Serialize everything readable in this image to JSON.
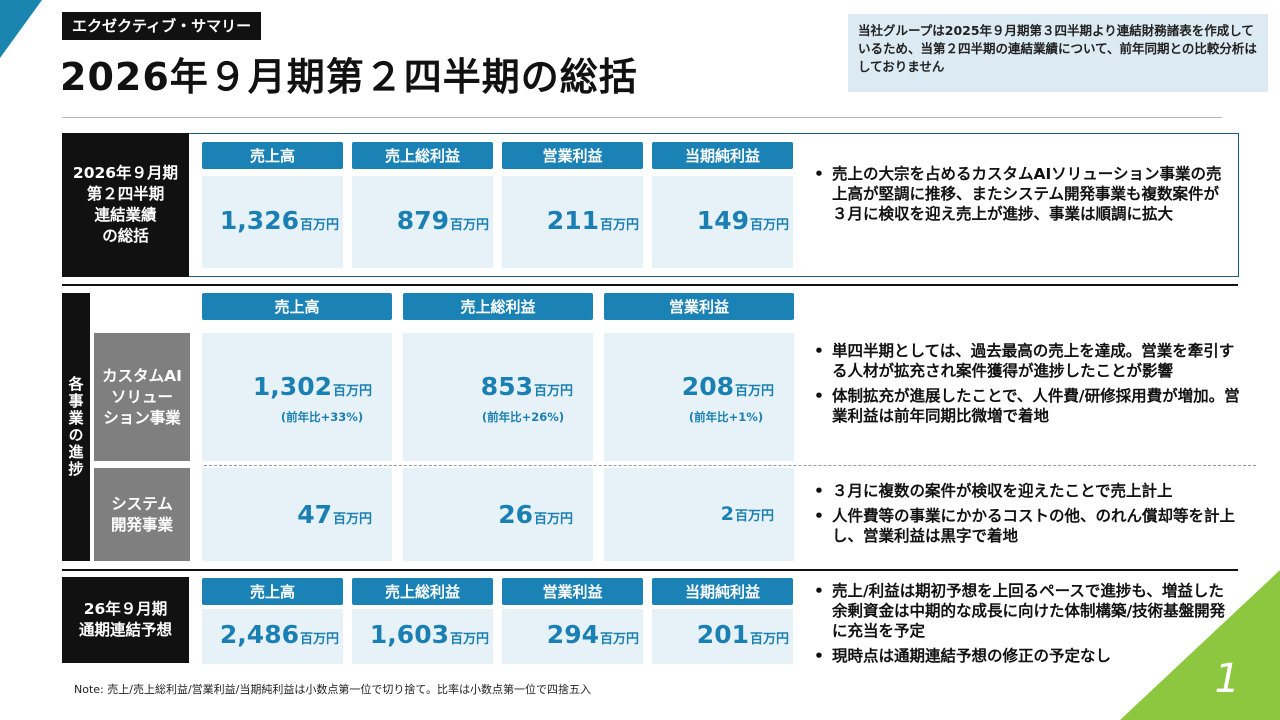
{
  "header": {
    "tag": "エクゼクティブ・サマリー",
    "title": "2026年９月期第２四半期の総括",
    "note": "当社グループは2025年９月期第３四半期より連結財務諸表を作成しているため、当第２四半期の連結業績について、前年同期との比較分析はしておりません"
  },
  "consolidated": {
    "label": "2026年９月期\n第２四半期\n連結業績\nの総括",
    "headers": [
      "売上高",
      "売上総利益",
      "営業利益",
      "当期純利益"
    ],
    "values": [
      "1,326",
      "879",
      "211",
      "149"
    ],
    "unit": "百万円",
    "bullets": [
      "売上の大宗を占めるカスタムAIソリューション事業の売上高が堅調に推移、またシステム開発事業も複数案件が３月に検収を迎え売上が進捗、事業は順調に拡大"
    ]
  },
  "segments": {
    "label": "各事業の進捗",
    "headers": [
      "売上高",
      "売上総利益",
      "営業利益"
    ],
    "custom_ai": {
      "label": "カスタムAI\nソリュー\nション事業",
      "values": [
        "1,302",
        "853",
        "208"
      ],
      "yoy": [
        "(前年比+33%)",
        "(前年比+26%)",
        "(前年比+1%)"
      ],
      "bullets": [
        "単四半期としては、過去最高の売上を達成。営業を牽引する人材が拡充され案件獲得が進捗したことが影響",
        "体制拡充が進展したことで、人件費/研修採用費が増加。営業利益は前年同期比微増で着地"
      ]
    },
    "system_dev": {
      "label": "システム\n開発事業",
      "values": [
        "47",
        "26",
        "2"
      ],
      "bullets": [
        "３月に複数の案件が検収を迎えたことで売上計上",
        "人件費等の事業にかかるコストの他、のれん償却等を計上し、営業利益は黒字で着地"
      ]
    }
  },
  "forecast": {
    "label": "26年９月期\n通期連結予想",
    "headers": [
      "売上高",
      "売上総利益",
      "営業利益",
      "当期純利益"
    ],
    "values": [
      "2,486",
      "1,603",
      "294",
      "201"
    ],
    "bullets": [
      "売上/利益は期初予想を上回るペースで進捗も、増益した余剰資金は中期的な成長に向けた体制構築/技術基盤開発に充当を予定",
      "現時点は通期連結予想の修正の予定なし"
    ]
  },
  "footnote": "Note: 売上/売上総利益/営業利益/当期純利益は小数点第一位で切り捨て。比率は小数点第一位で四捨五入",
  "page_number": "1",
  "colors": {
    "accent_blue": "#1a82b5",
    "value_blue": "#1a7fb2",
    "green": "#8dc63f",
    "cell_bg": "#e6f2f8"
  }
}
